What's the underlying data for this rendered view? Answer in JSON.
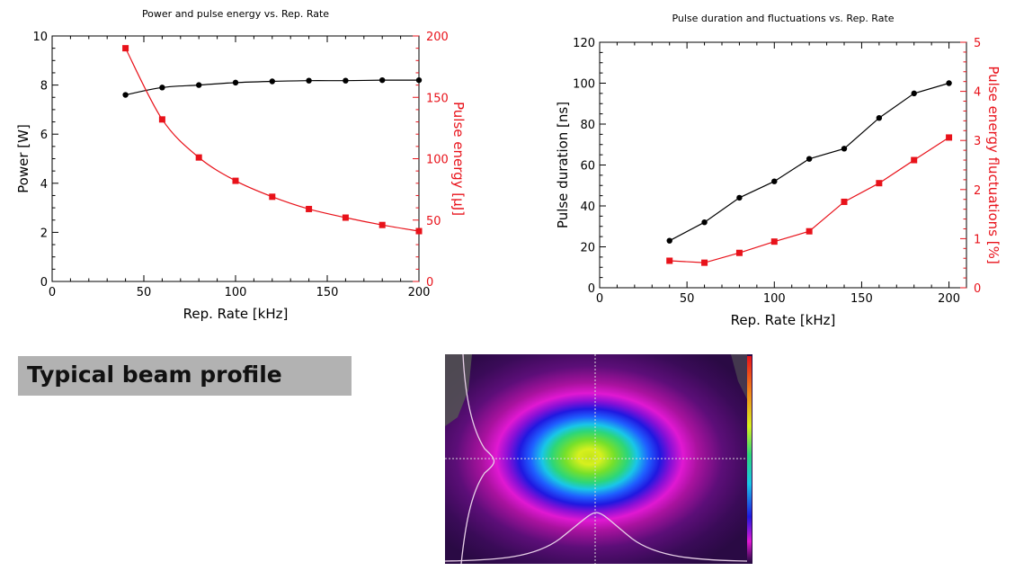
{
  "colors": {
    "black_series": "#000000",
    "red_series": "#e8121a",
    "banner_bg": "#b2b2b2"
  },
  "banner": {
    "text": "Typical beam profile"
  },
  "beam_profile": {
    "image": "beam-profile-false-color"
  },
  "chart_data": [
    {
      "type": "line",
      "title": "Power and pulse energy vs. Rep. Rate",
      "xlabel": "Rep. Rate [kHz]",
      "ylabel": "Power [W]",
      "y2label": "Pulse energy [µJ]",
      "xlim": [
        0,
        200
      ],
      "ylim": [
        0,
        10
      ],
      "y2lim": [
        0,
        200
      ],
      "xticks": [
        0,
        50,
        100,
        150,
        200
      ],
      "yticks": [
        0,
        2,
        4,
        6,
        8,
        10
      ],
      "y2ticks": [
        0,
        50,
        100,
        150,
        200
      ],
      "grid": false,
      "series": [
        {
          "axis": "left",
          "color": "#000000",
          "marker": "circle",
          "x": [
            40,
            60,
            80,
            100,
            120,
            140,
            160,
            180,
            200
          ],
          "y": [
            7.6,
            7.9,
            8.0,
            8.1,
            8.15,
            8.18,
            8.18,
            8.2,
            8.2
          ]
        },
        {
          "axis": "right",
          "color": "#e8121a",
          "marker": "square",
          "x": [
            40,
            60,
            80,
            100,
            120,
            140,
            160,
            180,
            200
          ],
          "y": [
            190,
            132,
            101,
            82,
            69,
            59,
            52,
            46,
            41
          ]
        }
      ]
    },
    {
      "type": "line",
      "title": "Pulse duration and fluctuations vs. Rep. Rate",
      "xlabel": "Rep. Rate [kHz]",
      "ylabel": "Pulse duration [ns]",
      "y2label": "Pulse energy fluctuations [%]",
      "xlim": [
        0,
        210
      ],
      "ylim": [
        0,
        120
      ],
      "y2lim": [
        0,
        5
      ],
      "xticks": [
        0,
        50,
        100,
        150,
        200
      ],
      "yticks": [
        0,
        20,
        40,
        60,
        80,
        100,
        120
      ],
      "y2ticks": [
        0,
        1,
        2,
        3,
        4,
        5
      ],
      "grid": false,
      "series": [
        {
          "axis": "left",
          "color": "#000000",
          "marker": "circle",
          "x": [
            40,
            60,
            80,
            100,
            120,
            140,
            160,
            180,
            200
          ],
          "y": [
            23,
            32,
            44,
            52,
            63,
            68,
            83,
            95,
            100
          ]
        },
        {
          "axis": "right",
          "color": "#e8121a",
          "marker": "square",
          "x": [
            40,
            60,
            80,
            100,
            120,
            140,
            160,
            180,
            200
          ],
          "y": [
            0.55,
            0.51,
            0.71,
            0.94,
            1.15,
            1.75,
            2.13,
            2.6,
            3.06
          ]
        }
      ]
    }
  ]
}
